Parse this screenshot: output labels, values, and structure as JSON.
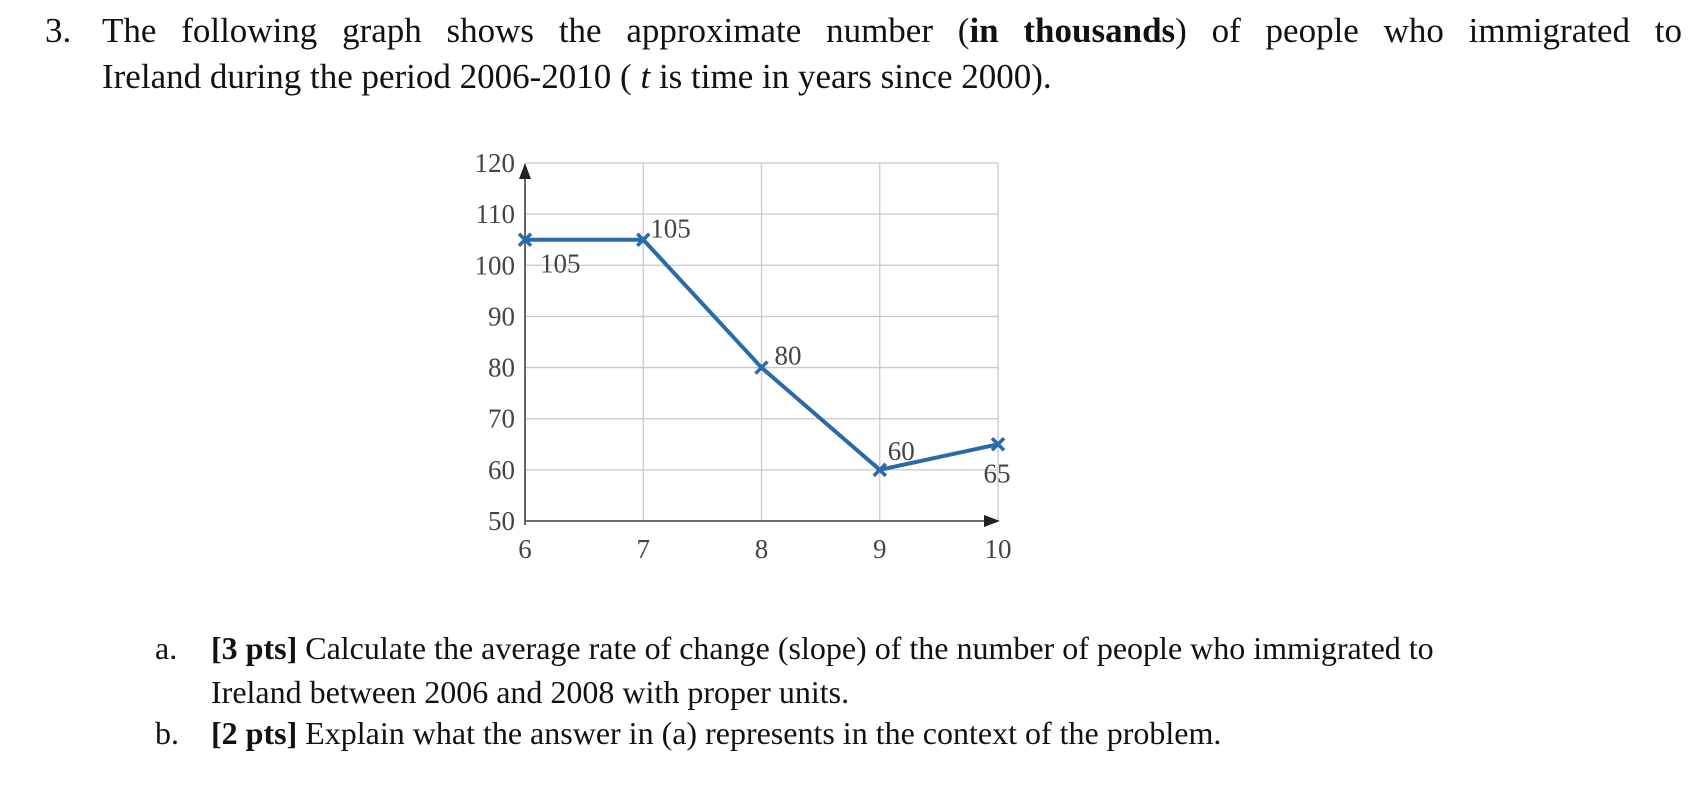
{
  "question": {
    "number": "3.",
    "text_line1_pre": "The following graph shows the approximate number (",
    "text_line1_bold": "in thousands",
    "text_line1_post": ") of people who immigrated to",
    "text_line2_pre": "Ireland during the period 2006-2010 ( ",
    "text_line2_var": "t",
    "text_line2_post": " is time in years since 2000)."
  },
  "chart_data": {
    "type": "line",
    "x": [
      6,
      7,
      8,
      9,
      10
    ],
    "series": [
      {
        "values": [
          105,
          105,
          80,
          60,
          65
        ],
        "color": "#2a6aa8"
      }
    ],
    "data_labels": [
      "105",
      "105",
      "80",
      "60",
      "65"
    ],
    "xticks": [
      "6",
      "7",
      "8",
      "9",
      "10"
    ],
    "yticks": [
      "50",
      "60",
      "70",
      "80",
      "90",
      "100",
      "110",
      "120"
    ],
    "xlim": [
      6,
      10
    ],
    "ylim": [
      50,
      120
    ],
    "grid": true,
    "marker": "x"
  },
  "subquestions": [
    {
      "letter": "a.",
      "points": "[3 pts]",
      "line1": " Calculate the average rate of change (slope) of the number of people who immigrated to",
      "line2": "Ireland between 2006 and 2008 with proper units."
    },
    {
      "letter": "b.",
      "points": "[2 pts]",
      "line1": " Explain what the answer in (a) represents in the context of the problem."
    }
  ]
}
